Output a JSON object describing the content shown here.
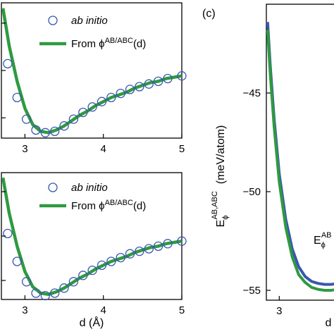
{
  "chart_data": [
    {
      "panel": "top-left",
      "type": "scatter",
      "xlim": [
        2.7,
        5.0
      ],
      "ylim": [
        0,
        1
      ],
      "xticks": [
        "3",
        "4",
        "5"
      ],
      "grid": false,
      "legend": {
        "placement": "top-right",
        "entries": [
          "ab initio",
          "From ϕ",
          "AB/ABC",
          "(d)"
        ]
      },
      "series": [
        {
          "name": "ab initio",
          "marker": "open-circle",
          "x": [
            2.78,
            2.9,
            3.02,
            3.14,
            3.26,
            3.38,
            3.5,
            3.62,
            3.74,
            3.86,
            3.98,
            4.1,
            4.22,
            4.34,
            4.46,
            4.58,
            4.7,
            4.82,
            5.0
          ],
          "y": [
            0.55,
            0.3,
            0.14,
            0.06,
            0.04,
            0.05,
            0.09,
            0.14,
            0.19,
            0.23,
            0.27,
            0.3,
            0.33,
            0.36,
            0.38,
            0.4,
            0.42,
            0.44,
            0.46
          ]
        },
        {
          "name": "From ϕAB/ABC(d)",
          "marker": "line",
          "x": [
            2.72,
            2.8,
            2.9,
            3.0,
            3.1,
            3.2,
            3.3,
            3.4,
            3.5,
            3.6,
            3.7,
            3.8,
            3.9,
            4.0,
            4.1,
            4.2,
            4.3,
            4.4,
            4.5,
            4.6,
            4.7,
            4.8,
            4.9,
            5.0
          ],
          "y": [
            0.96,
            0.68,
            0.42,
            0.22,
            0.1,
            0.05,
            0.04,
            0.06,
            0.09,
            0.13,
            0.17,
            0.2,
            0.24,
            0.27,
            0.3,
            0.32,
            0.34,
            0.37,
            0.39,
            0.41,
            0.42,
            0.44,
            0.45,
            0.46
          ]
        }
      ]
    },
    {
      "panel": "bottom-left",
      "type": "scatter",
      "xlim": [
        2.7,
        5.0
      ],
      "ylim": [
        0,
        1
      ],
      "xticks": [
        "3",
        "4",
        "5"
      ],
      "xlabel": "d (Å)",
      "grid": false,
      "legend": {
        "placement": "top-right",
        "entries": [
          "ab initio",
          "From ϕ",
          "AB/ABC",
          "(d)"
        ]
      },
      "series": [
        {
          "name": "ab initio",
          "marker": "open-circle",
          "x": [
            2.78,
            2.9,
            3.02,
            3.14,
            3.26,
            3.38,
            3.5,
            3.62,
            3.74,
            3.86,
            3.98,
            4.1,
            4.22,
            4.34,
            4.46,
            4.58,
            4.7,
            4.82,
            5.0
          ],
          "y": [
            0.52,
            0.3,
            0.14,
            0.05,
            0.03,
            0.05,
            0.09,
            0.14,
            0.19,
            0.23,
            0.27,
            0.3,
            0.33,
            0.36,
            0.38,
            0.4,
            0.42,
            0.44,
            0.46
          ]
        },
        {
          "name": "From ϕAB/ABC(d)",
          "marker": "line",
          "x": [
            2.72,
            2.8,
            2.9,
            3.0,
            3.1,
            3.2,
            3.3,
            3.4,
            3.5,
            3.6,
            3.7,
            3.8,
            3.9,
            4.0,
            4.1,
            4.2,
            4.3,
            4.4,
            4.5,
            4.6,
            4.7,
            4.8,
            4.9,
            5.0
          ],
          "y": [
            0.96,
            0.68,
            0.42,
            0.22,
            0.1,
            0.05,
            0.04,
            0.06,
            0.09,
            0.13,
            0.17,
            0.2,
            0.24,
            0.27,
            0.3,
            0.32,
            0.34,
            0.37,
            0.39,
            0.41,
            0.42,
            0.44,
            0.45,
            0.46
          ]
        }
      ]
    },
    {
      "panel": "right",
      "panel_label": "(c)",
      "type": "line",
      "xlim": [
        2.9,
        3.5
      ],
      "ylim": [
        -55.5,
        -40.5
      ],
      "xticks": [
        "3"
      ],
      "yticks": [
        "-45",
        "-50",
        "-55"
      ],
      "xlabel": "d",
      "ylabel": {
        "base": "E",
        "sub": "ϕ",
        "sup": "AB,ABC",
        "unit": "(meV/atom)"
      },
      "annotation": {
        "base": "E",
        "sub": "ϕ",
        "sup": "AB"
      },
      "grid": false,
      "series": [
        {
          "color": "#3a56b0",
          "x": [
            2.91,
            2.93,
            2.96,
            3.0,
            3.05,
            3.1,
            3.15,
            3.2,
            3.25,
            3.3,
            3.35,
            3.4,
            3.45,
            3.5
          ],
          "y": [
            -41.4,
            -43.6,
            -46.3,
            -49.1,
            -51.4,
            -52.9,
            -53.8,
            -54.3,
            -54.55,
            -54.65,
            -54.7,
            -54.7,
            -54.68,
            -54.65
          ]
        },
        {
          "color": "#2e9a3f",
          "x": [
            2.91,
            2.93,
            2.96,
            3.0,
            3.05,
            3.1,
            3.15,
            3.2,
            3.25,
            3.3,
            3.35,
            3.4,
            3.45,
            3.5
          ],
          "y": [
            -41.8,
            -44.0,
            -46.7,
            -49.5,
            -51.8,
            -53.3,
            -54.2,
            -54.6,
            -54.85,
            -54.95,
            -55.0,
            -55.0,
            -54.98,
            -54.95
          ]
        }
      ]
    }
  ],
  "colors": {
    "circle": "#3a56b0",
    "fit_line": "#2e9a3f",
    "axis": "#000000"
  }
}
